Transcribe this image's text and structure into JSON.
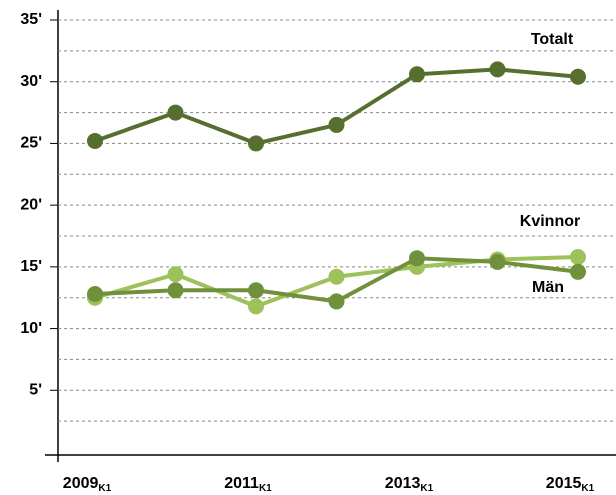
{
  "chart_data": {
    "type": "line",
    "categories": [
      "2009",
      null,
      "2011",
      null,
      "2013",
      null,
      "2015"
    ],
    "category_suffix": "K1",
    "series": [
      {
        "name": "Totalt",
        "color": "#566f2e",
        "values": [
          25.2,
          27.5,
          25.0,
          26.5,
          30.6,
          31.0,
          30.4
        ]
      },
      {
        "name": "Kvinnor",
        "color": "#9dc15b",
        "values": [
          12.5,
          14.4,
          11.8,
          14.2,
          15.0,
          15.6,
          15.8
        ]
      },
      {
        "name": "Män",
        "color": "#71903b",
        "values": [
          12.8,
          13.1,
          13.1,
          12.2,
          15.7,
          15.4,
          14.6
        ]
      }
    ],
    "ylim": [
      0,
      35
    ],
    "yticks": [
      {
        "value": 5,
        "label": "5'"
      },
      {
        "value": 10,
        "label": "10'"
      },
      {
        "value": 15,
        "label": "15'"
      },
      {
        "value": 20,
        "label": "20'"
      },
      {
        "value": 25,
        "label": "25'"
      },
      {
        "value": 30,
        "label": "30'"
      },
      {
        "value": 35,
        "label": "35'"
      }
    ],
    "minor_yticks": [
      2.5,
      7.5,
      12.5,
      17.5,
      22.5,
      27.5,
      32.5
    ],
    "grid": true
  }
}
